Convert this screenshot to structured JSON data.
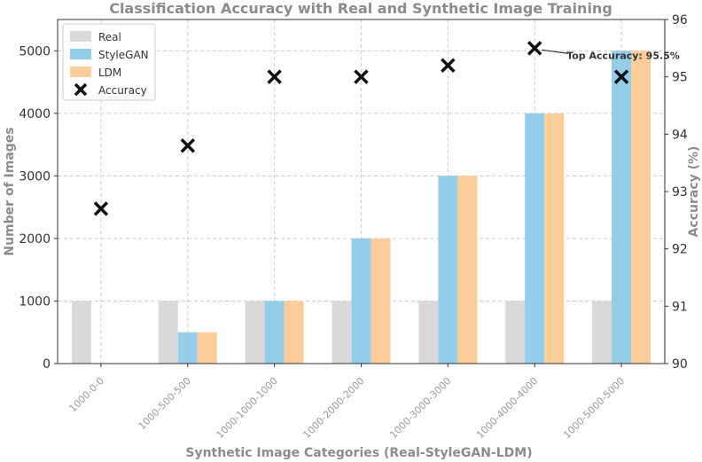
{
  "chart_data": {
    "type": "bar",
    "title": "Classification Accuracy with Real and Synthetic Image Training",
    "xlabel": "Synthetic Image Categories (Real-StyleGAN-LDM)",
    "ylabel": "Number of Images",
    "y2label": "Accuracy (%)",
    "categories": [
      "1000-0-0",
      "1000-500-500",
      "1000-1000-1000",
      "1000-2000-2000",
      "1000-3000-3000",
      "1000-4000-4000",
      "1000-5000-5000"
    ],
    "series": [
      {
        "name": "Real",
        "color": "#d9d9d9",
        "values": [
          1000,
          1000,
          1000,
          1000,
          1000,
          1000,
          1000
        ]
      },
      {
        "name": "StyleGAN",
        "color": "#93cde8",
        "values": [
          0,
          500,
          1000,
          2000,
          3000,
          4000,
          5000
        ]
      },
      {
        "name": "LDM",
        "color": "#fccc9a",
        "values": [
          0,
          500,
          1000,
          2000,
          3000,
          4000,
          5000
        ]
      }
    ],
    "accuracy": {
      "name": "Accuracy",
      "marker": "x",
      "values": [
        92.7,
        93.8,
        95.0,
        95.0,
        95.2,
        95.5,
        95.0
      ]
    },
    "ylim": [
      0,
      5500
    ],
    "yticks": [
      "0",
      "1000",
      "2000",
      "3000",
      "4000",
      "5000"
    ],
    "y2lim": [
      90,
      96
    ],
    "y2ticks": [
      "90",
      "91",
      "92",
      "93",
      "94",
      "95",
      "96"
    ],
    "grid": true,
    "legend_position": "top-left",
    "annotation": {
      "text": "Top Accuracy: 95.5%",
      "category_index": 5,
      "value": 95.5
    }
  }
}
